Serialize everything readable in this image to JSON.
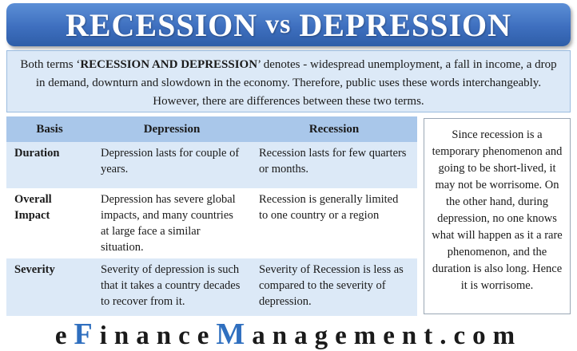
{
  "title": {
    "left": "RECESSION",
    "vs": "vs",
    "right": "DEPRESSION"
  },
  "intro": {
    "before": "Both terms ‘",
    "bold": "RECESSION AND DEPRESSION",
    "after": "’ denotes - widespread unemployment, a fall in income, a drop in demand, downturn and slowdown in the economy. Therefore, public uses these words interchangeably. However, there are differences between these two terms."
  },
  "table": {
    "headers": {
      "basis": "Basis",
      "depression": "Depression",
      "recession": "Recession"
    },
    "rows": [
      {
        "basis": "Duration",
        "depression": "Depression lasts for couple of years.",
        "recession": "Recession lasts for few quarters or months."
      },
      {
        "basis": "Overall Impact",
        "depression": "Depression has severe global impacts, and many countries at large face a similar situation.",
        "recession": "Recession is generally limited to one country or a region"
      },
      {
        "basis": "Severity",
        "depression": "Severity of depression is such that it takes a country decades to recover from it.",
        "recession": "Severity of Recession is less as compared to the severity of depression."
      }
    ]
  },
  "side_note": "Since recession is a temporary phenomenon and going to be short-lived, it may not be worrisome. On the other hand, during depression, no one knows what will happen as it a rare phenomenon, and the duration is also long. Hence it is worrisome.",
  "brand": {
    "part1": "e",
    "hl1": "F",
    "part2": "inance",
    "hl2": "M",
    "part3": "anagement.com"
  }
}
